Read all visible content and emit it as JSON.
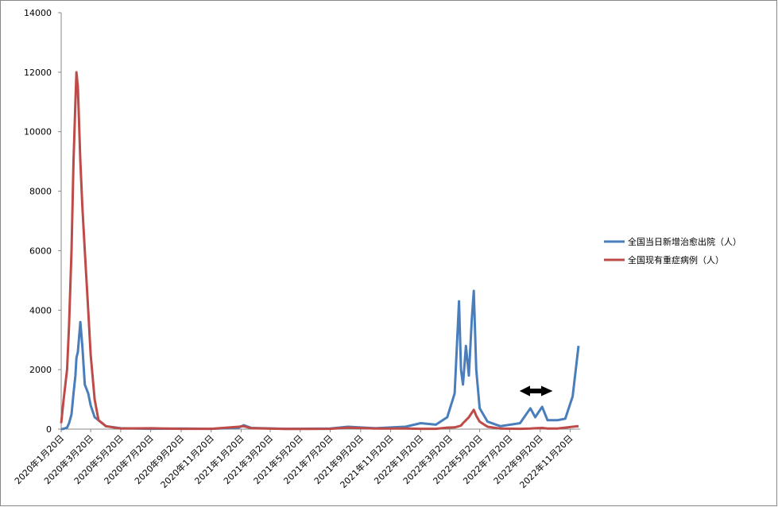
{
  "chart_data": {
    "type": "line",
    "x": [
      "2020-01-20",
      "2020-01-25",
      "2020-02-01",
      "2020-02-05",
      "2020-02-10",
      "2020-02-14",
      "2020-02-18",
      "2020-02-20",
      "2020-02-23",
      "2020-02-28",
      "2020-03-03",
      "2020-03-08",
      "2020-03-15",
      "2020-03-20",
      "2020-03-28",
      "2020-04-05",
      "2020-04-20",
      "2020-05-20",
      "2020-07-20",
      "2020-09-20",
      "2020-11-20",
      "2021-01-15",
      "2021-01-25",
      "2021-02-10",
      "2021-04-20",
      "2021-07-20",
      "2021-08-25",
      "2021-10-20",
      "2021-12-20",
      "2022-01-20",
      "2022-02-20",
      "2022-03-15",
      "2022-03-30",
      "2022-04-08",
      "2022-04-12",
      "2022-04-16",
      "2022-04-22",
      "2022-04-28",
      "2022-05-04",
      "2022-05-08",
      "2022-05-13",
      "2022-05-20",
      "2022-06-05",
      "2022-07-01",
      "2022-08-10",
      "2022-08-31",
      "2022-09-10",
      "2022-09-24",
      "2022-10-05",
      "2022-10-25",
      "2022-11-10",
      "2022-11-25",
      "2022-12-07"
    ],
    "series": [
      {
        "name": "全国当日新增治愈出院（人）",
        "color": "#4a7ebb",
        "values": [
          0,
          10,
          50,
          200,
          500,
          1200,
          1800,
          2400,
          2600,
          3600,
          2800,
          1500,
          1200,
          800,
          400,
          300,
          100,
          30,
          10,
          20,
          10,
          50,
          130,
          40,
          10,
          20,
          80,
          30,
          80,
          200,
          150,
          400,
          1200,
          4300,
          2000,
          1500,
          2800,
          1800,
          3700,
          4650,
          2000,
          700,
          250,
          100,
          200,
          700,
          400,
          750,
          300,
          300,
          350,
          1100,
          2800
        ]
      },
      {
        "name": "全国现有重症病例（人）",
        "color": "#be4b48",
        "values": [
          200,
          1000,
          2000,
          3500,
          6000,
          9000,
          11000,
          12000,
          11500,
          9000,
          7500,
          6000,
          4000,
          2500,
          1000,
          300,
          100,
          20,
          30,
          10,
          10,
          80,
          100,
          30,
          5,
          10,
          50,
          20,
          20,
          10,
          10,
          50,
          60,
          100,
          120,
          200,
          300,
          400,
          550,
          650,
          450,
          250,
          80,
          20,
          10,
          20,
          30,
          40,
          20,
          20,
          50,
          80,
          100
        ]
      }
    ],
    "xlim": [
      "2020-01-20",
      "2022-12-07"
    ],
    "xticks": [
      {
        "value": "2020-01-20",
        "label": "2020年1月20日"
      },
      {
        "value": "2020-03-20",
        "label": "2020年3月20日"
      },
      {
        "value": "2020-05-20",
        "label": "2020年5月20日"
      },
      {
        "value": "2020-07-20",
        "label": "2020年7月20日"
      },
      {
        "value": "2020-09-20",
        "label": "2020年9月20日"
      },
      {
        "value": "2020-11-20",
        "label": "2020年11月20日"
      },
      {
        "value": "2021-01-20",
        "label": "2021年1月20日"
      },
      {
        "value": "2021-03-20",
        "label": "2021年3月20日"
      },
      {
        "value": "2021-05-20",
        "label": "2021年5月20日"
      },
      {
        "value": "2021-07-20",
        "label": "2021年7月20日"
      },
      {
        "value": "2021-09-20",
        "label": "2021年9月20日"
      },
      {
        "value": "2021-11-20",
        "label": "2021年11月20日"
      },
      {
        "value": "2022-01-20",
        "label": "2022年1月20日"
      },
      {
        "value": "2022-03-20",
        "label": "2022年3月20日"
      },
      {
        "value": "2022-05-20",
        "label": "2022年5月20日"
      },
      {
        "value": "2022-07-20",
        "label": "2022年7月20日"
      },
      {
        "value": "2022-09-20",
        "label": "2022年9月20日"
      },
      {
        "value": "2022-11-20",
        "label": "2022年11月20日"
      }
    ],
    "ylim": [
      0,
      14000
    ],
    "yticks": [
      0,
      2000,
      4000,
      6000,
      8000,
      10000,
      12000,
      14000
    ],
    "legend": "right"
  }
}
